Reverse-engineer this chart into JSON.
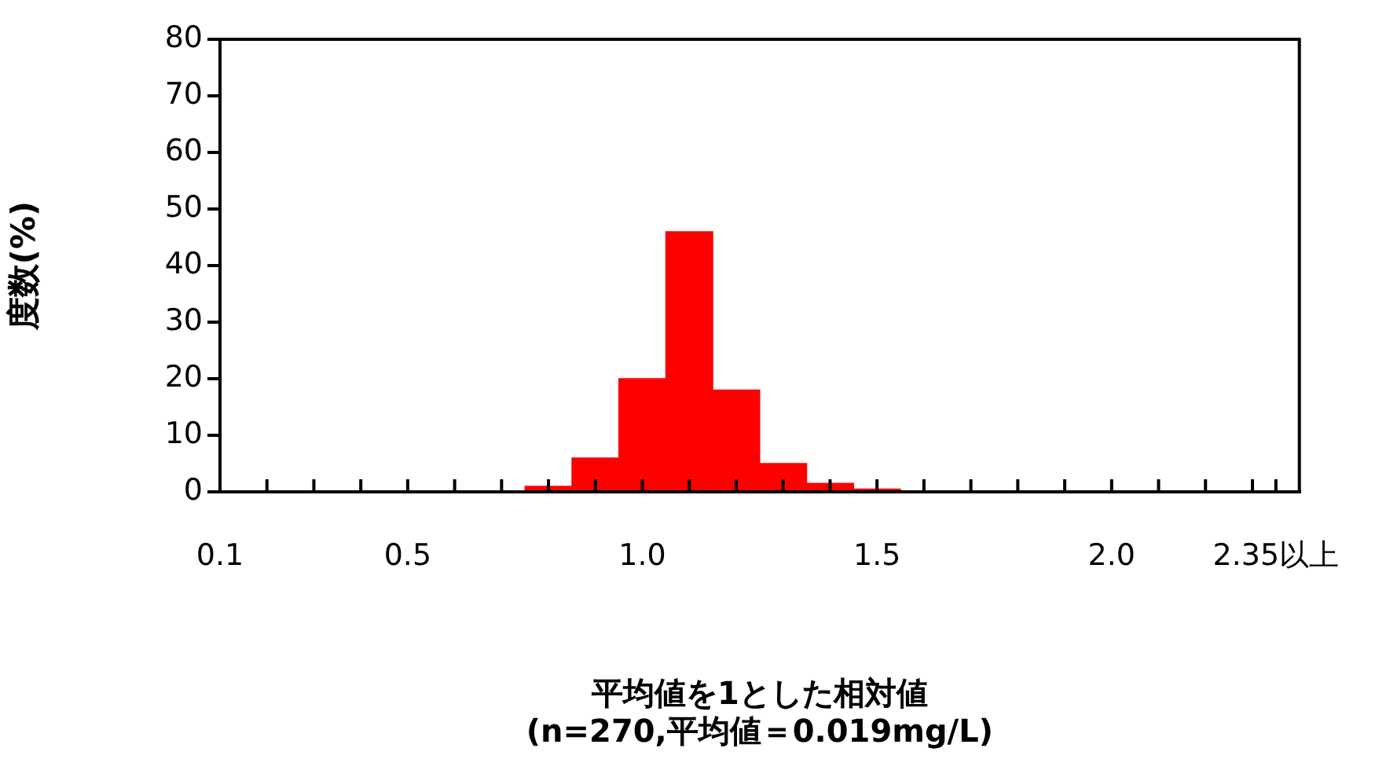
{
  "chart_data": {
    "type": "histogram",
    "xlabel": "平均値を1とした相対値",
    "ylabel": "度数(%)",
    "annotations": [
      "(n=270,平均値＝0.019mg/L)"
    ],
    "bins": [
      0.75,
      0.85,
      0.95,
      1.05,
      1.15,
      1.25,
      1.35,
      1.45,
      1.55
    ],
    "values": [
      1,
      6,
      20,
      46,
      18,
      5,
      1.5,
      0.5
    ],
    "color": "#ff0000",
    "xlim": [
      0.1,
      2.4
    ],
    "xticks": [
      0.1,
      {
        "value": 0.2,
        "label": null
      },
      {
        "value": 0.3,
        "label": null
      },
      {
        "value": 0.4,
        "label": null
      },
      0.5,
      {
        "value": 0.6,
        "label": null
      },
      {
        "value": 0.7,
        "label": null
      },
      {
        "value": 0.8,
        "label": null
      },
      {
        "value": 0.9,
        "label": null
      },
      {
        "value": 1,
        "label": "1.0"
      },
      {
        "value": 1.1,
        "label": null
      },
      {
        "value": 1.2,
        "label": null
      },
      {
        "value": 1.3,
        "label": null
      },
      {
        "value": 1.4,
        "label": null
      },
      1.5,
      {
        "value": 1.6,
        "label": null
      },
      {
        "value": 1.7,
        "label": null
      },
      {
        "value": 1.8,
        "label": null
      },
      {
        "value": 1.9,
        "label": null
      },
      {
        "value": 2,
        "label": "2.0"
      },
      {
        "value": 2.1,
        "label": null
      },
      {
        "value": 2.2,
        "label": null
      },
      {
        "value": 2.3,
        "label": null
      },
      {
        "value": 2.35,
        "label": "2.35以上"
      }
    ],
    "ylim": [
      0,
      80
    ],
    "yticks": [
      0,
      10,
      20,
      30,
      40,
      50,
      60,
      70,
      80
    ],
    "grid": false,
    "legend": false
  }
}
